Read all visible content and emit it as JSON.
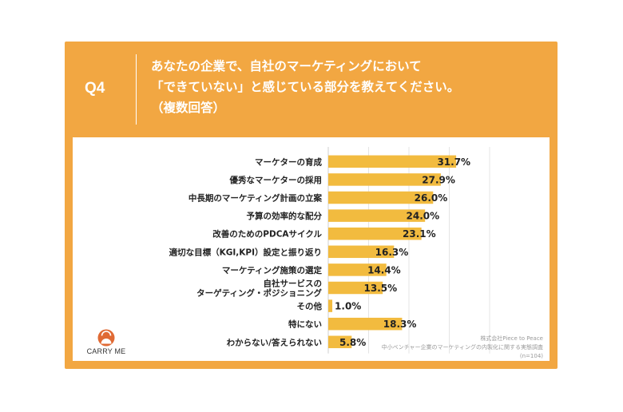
{
  "header": {
    "question_number": "Q4",
    "question_line1": "あなたの企業で、自社のマーケティングにおいて",
    "question_line2": "「できていない」と感じている部分を教えてください。",
    "question_line3": "（複数回答）"
  },
  "brand": {
    "name": "CARRY ME",
    "logo_icon": "carry-me-logo-icon"
  },
  "source": {
    "line1": "株式会社Piece to Peace",
    "line2": "中小ベンチャー企業のマーケティングの内製化に関する実態調査",
    "line3": "(n=104)"
  },
  "colors": {
    "frame": "#f2a742",
    "bar": "#f2bb3f",
    "logo": "#e06a34"
  },
  "chart_data": {
    "type": "bar",
    "orientation": "horizontal",
    "categories": [
      [
        "マーケターの育成"
      ],
      [
        "優秀なマーケターの採用"
      ],
      [
        "中長期のマーケティング計画の立案"
      ],
      [
        "予算の効率的な配分"
      ],
      [
        "改善のためのPDCAサイクル"
      ],
      [
        "適切な目標（KGI,KPI）設定と振り返り"
      ],
      [
        "マーケティング施策の選定"
      ],
      [
        "自社サービスの",
        "ターゲティング・ポジショニング"
      ],
      [
        "その他"
      ],
      [
        "特にない"
      ],
      [
        "わからない/答えられない"
      ]
    ],
    "values": [
      31.7,
      27.9,
      26.0,
      24.0,
      23.1,
      16.3,
      14.4,
      13.5,
      1.0,
      18.3,
      5.8
    ],
    "value_labels": [
      "31.7%",
      "27.9%",
      "26.0%",
      "24.0%",
      "23.1%",
      "16.3%",
      "14.4%",
      "13.5%",
      "1.0%",
      "18.3%",
      "5.8%"
    ],
    "unit": "%",
    "xlim": [
      0,
      40
    ],
    "grid": true
  }
}
